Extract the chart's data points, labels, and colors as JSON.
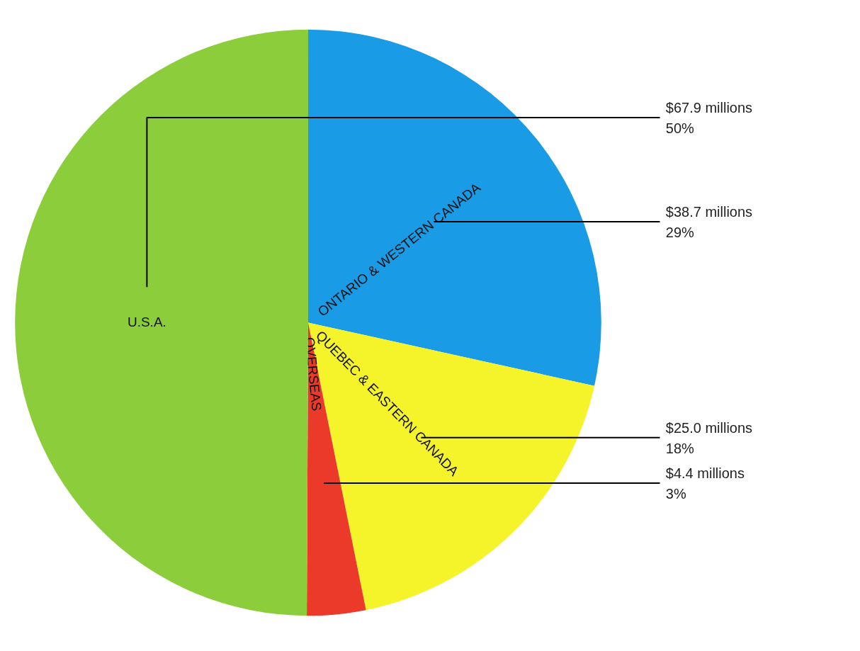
{
  "chart_data": {
    "type": "pie",
    "categories": [
      "ONTARIO & WESTERN CANADA",
      "QUEBEC & EASTERN CANADA",
      "OVERSEAS",
      "U.S.A."
    ],
    "values": [
      38.7,
      25.0,
      4.4,
      67.9
    ],
    "colors": [
      "#1a9be6",
      "#f5f32a",
      "#ec3a2a",
      "#8ccd3c"
    ],
    "value_labels": [
      "$38.7 millions",
      "$25.0 millions",
      "$4.4 millions",
      "$67.9 millions"
    ],
    "annotations": [
      "29%",
      "18%",
      "3%",
      "50%"
    ]
  }
}
